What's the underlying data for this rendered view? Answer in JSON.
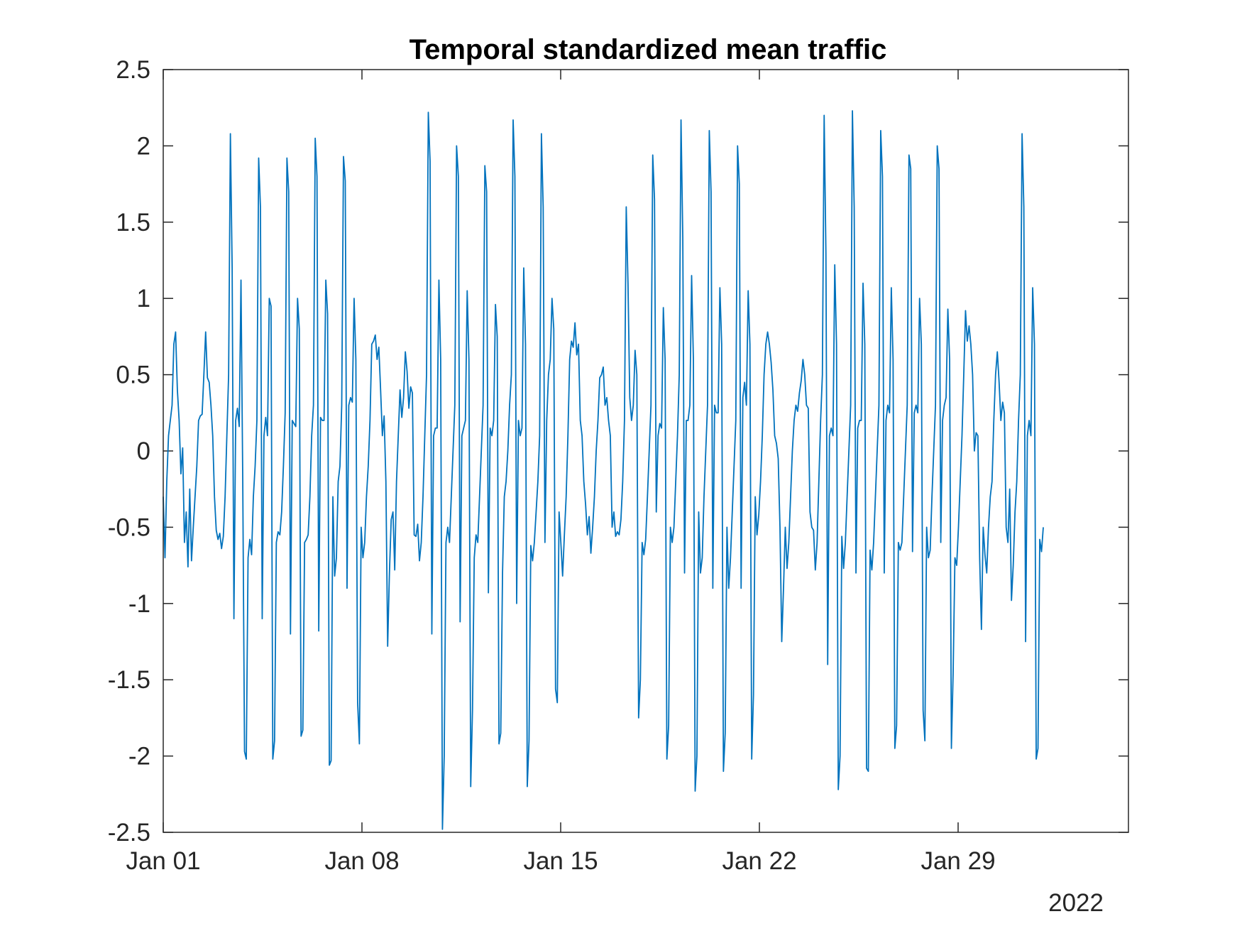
{
  "chart_data": {
    "type": "line",
    "title": "Temporal standardized mean traffic",
    "xlabel": "",
    "ylabel": "",
    "x_start": "2022-01-01",
    "x_end": "2022-02-01",
    "xlim": [
      "2022-01-01",
      "2022-02-04"
    ],
    "ylim": [
      -2.5,
      2.5
    ],
    "x_ticks": [
      "Jan 01",
      "Jan 08",
      "Jan 15",
      "Jan 22",
      "Jan 29"
    ],
    "x_secondary_label": "2022",
    "y_ticks": [
      "-2.5",
      "-2",
      "-1.5",
      "-1",
      "-0.5",
      "0",
      "0.5",
      "1",
      "1.5",
      "2",
      "2.5"
    ],
    "grid": false,
    "box": true,
    "series": [
      {
        "color": "#0072BD",
        "values": [
          -0.3,
          -0.7,
          -0.2,
          0.1,
          0.2,
          0.3,
          0.7,
          0.78,
          0.4,
          0.2,
          -0.15,
          0.02,
          -0.6,
          -0.4,
          -0.76,
          -0.25,
          -0.72,
          -0.5,
          -0.3,
          -0.1,
          0.2,
          0.23,
          0.24,
          0.5,
          0.78,
          0.48,
          0.45,
          0.3,
          0.1,
          -0.3,
          -0.52,
          -0.58,
          -0.54,
          -0.64,
          -0.56,
          -0.3,
          0.1,
          0.5,
          2.08,
          1.2,
          -1.1,
          0.2,
          0.28,
          0.16,
          1.12,
          -0.2,
          -1.97,
          -2.02,
          -0.7,
          -0.58,
          -0.68,
          -0.3,
          -0.1,
          0.2,
          1.92,
          1.6,
          -1.1,
          0.1,
          0.22,
          0.1,
          1.0,
          0.95,
          -2.02,
          -1.9,
          -0.6,
          -0.53,
          -0.55,
          -0.4,
          -0.1,
          0.25,
          1.92,
          1.7,
          -1.2,
          0.2,
          0.18,
          0.16,
          1.0,
          0.8,
          -1.87,
          -1.83,
          -0.6,
          -0.58,
          -0.55,
          -0.3,
          0.1,
          0.3,
          2.05,
          1.8,
          -1.18,
          0.22,
          0.2,
          0.2,
          1.12,
          0.9,
          -2.06,
          -2.03,
          -0.3,
          -0.82,
          -0.7,
          -0.2,
          -0.1,
          0.3,
          1.93,
          1.77,
          -0.9,
          0.3,
          0.35,
          0.32,
          1.0,
          0.6,
          -1.65,
          -1.92,
          -0.5,
          -0.7,
          -0.6,
          -0.3,
          -0.1,
          0.2,
          0.7,
          0.72,
          0.76,
          0.6,
          0.68,
          0.4,
          0.1,
          0.23,
          -0.2,
          -1.28,
          -0.8,
          -0.45,
          -0.4,
          -0.78,
          -0.2,
          0.1,
          0.4,
          0.22,
          0.35,
          0.65,
          0.52,
          0.28,
          0.42,
          0.38,
          -0.55,
          -0.56,
          -0.48,
          -0.72,
          -0.6,
          -0.3,
          0.1,
          0.5,
          2.22,
          1.9,
          -1.2,
          0.1,
          0.15,
          0.15,
          1.12,
          0.6,
          -2.48,
          -2.0,
          -0.6,
          -0.5,
          -0.6,
          -0.3,
          0.0,
          0.3,
          2.0,
          1.8,
          -1.12,
          0.1,
          0.15,
          0.2,
          1.05,
          0.6,
          -2.2,
          -1.7,
          -0.7,
          -0.55,
          -0.6,
          -0.3,
          0.0,
          0.3,
          1.87,
          1.7,
          -0.93,
          0.15,
          0.1,
          0.2,
          0.96,
          0.75,
          -1.92,
          -1.85,
          -0.8,
          -0.3,
          -0.2,
          0.0,
          0.3,
          0.5,
          2.17,
          1.8,
          -1.0,
          0.2,
          0.1,
          0.15,
          1.2,
          0.7,
          -2.2,
          -1.9,
          -0.62,
          -0.72,
          -0.6,
          -0.4,
          -0.2,
          0.1,
          2.08,
          1.6,
          -0.6,
          0.2,
          0.5,
          0.6,
          1.0,
          0.8,
          -1.56,
          -1.65,
          -0.4,
          -0.6,
          -0.82,
          -0.55,
          -0.3,
          0.1,
          0.6,
          0.72,
          0.68,
          0.84,
          0.63,
          0.7,
          0.2,
          0.1,
          -0.2,
          -0.35,
          -0.55,
          -0.43,
          -0.67,
          -0.5,
          -0.3,
          0.0,
          0.2,
          0.48,
          0.5,
          0.55,
          0.3,
          0.35,
          0.2,
          0.1,
          -0.5,
          -0.4,
          -0.56,
          -0.53,
          -0.55,
          -0.45,
          -0.2,
          0.2,
          1.6,
          1.1,
          0.35,
          0.2,
          0.3,
          0.66,
          0.5,
          -1.75,
          -1.5,
          -0.6,
          -0.68,
          -0.58,
          -0.3,
          0.0,
          0.3,
          1.94,
          1.65,
          -0.4,
          0.1,
          0.18,
          0.15,
          0.94,
          0.6,
          -2.02,
          -1.8,
          -0.5,
          -0.6,
          -0.5,
          -0.2,
          0.1,
          0.5,
          2.17,
          1.4,
          -0.8,
          0.2,
          0.2,
          0.3,
          1.15,
          0.6,
          -2.23,
          -2.0,
          -0.4,
          -0.8,
          -0.7,
          -0.3,
          0.0,
          0.3,
          2.1,
          1.7,
          -0.9,
          0.3,
          0.25,
          0.25,
          1.07,
          0.7,
          -2.1,
          -1.85,
          -0.5,
          -0.9,
          -0.7,
          -0.4,
          -0.1,
          0.2,
          2.0,
          1.75,
          -0.9,
          0.35,
          0.45,
          0.3,
          1.05,
          0.7,
          -2.02,
          -1.6,
          -0.3,
          -0.55,
          -0.42,
          -0.2,
          0.1,
          0.5,
          0.7,
          0.78,
          0.7,
          0.58,
          0.4,
          0.1,
          0.05,
          -0.05,
          -0.5,
          -1.25,
          -0.9,
          -0.5,
          -0.77,
          -0.6,
          -0.3,
          0.0,
          0.2,
          0.3,
          0.26,
          0.38,
          0.46,
          0.6,
          0.5,
          0.3,
          0.28,
          -0.4,
          -0.5,
          -0.52,
          -0.78,
          -0.6,
          -0.2,
          0.2,
          0.5,
          2.2,
          1.3,
          -1.4,
          0.1,
          0.15,
          0.1,
          1.22,
          0.7,
          -2.22,
          -2.0,
          -0.56,
          -0.77,
          -0.6,
          -0.3,
          0.0,
          0.3,
          2.23,
          1.6,
          -0.8,
          0.15,
          0.2,
          0.2,
          1.1,
          0.7,
          -2.08,
          -2.1,
          -0.65,
          -0.78,
          -0.6,
          -0.3,
          0.0,
          0.3,
          2.1,
          1.8,
          -0.8,
          0.2,
          0.3,
          0.25,
          1.07,
          0.6,
          -1.95,
          -1.8,
          -0.6,
          -0.65,
          -0.6,
          -0.3,
          0.0,
          0.3,
          1.94,
          1.85,
          -0.66,
          0.25,
          0.3,
          0.25,
          1.0,
          0.7,
          -1.7,
          -1.9,
          -0.5,
          -0.7,
          -0.65,
          -0.3,
          0.0,
          0.3,
          2.0,
          1.85,
          -0.6,
          0.2,
          0.3,
          0.35,
          0.93,
          0.6,
          -1.95,
          -1.45,
          -0.7,
          -0.75,
          -0.5,
          -0.2,
          0.1,
          0.5,
          0.92,
          0.72,
          0.82,
          0.7,
          0.5,
          0.0,
          0.12,
          0.1,
          -0.7,
          -1.17,
          -0.5,
          -0.68,
          -0.8,
          -0.5,
          -0.3,
          -0.2,
          0.2,
          0.5,
          0.65,
          0.45,
          0.2,
          0.32,
          0.25,
          -0.5,
          -0.6,
          -0.25,
          -0.98,
          -0.75,
          -0.4,
          -0.2,
          0.2,
          0.5,
          2.08,
          1.6,
          -1.25,
          0.1,
          0.2,
          0.1,
          1.07,
          0.7,
          -2.02,
          -1.95,
          -0.58,
          -0.66,
          -0.5
        ]
      }
    ]
  }
}
